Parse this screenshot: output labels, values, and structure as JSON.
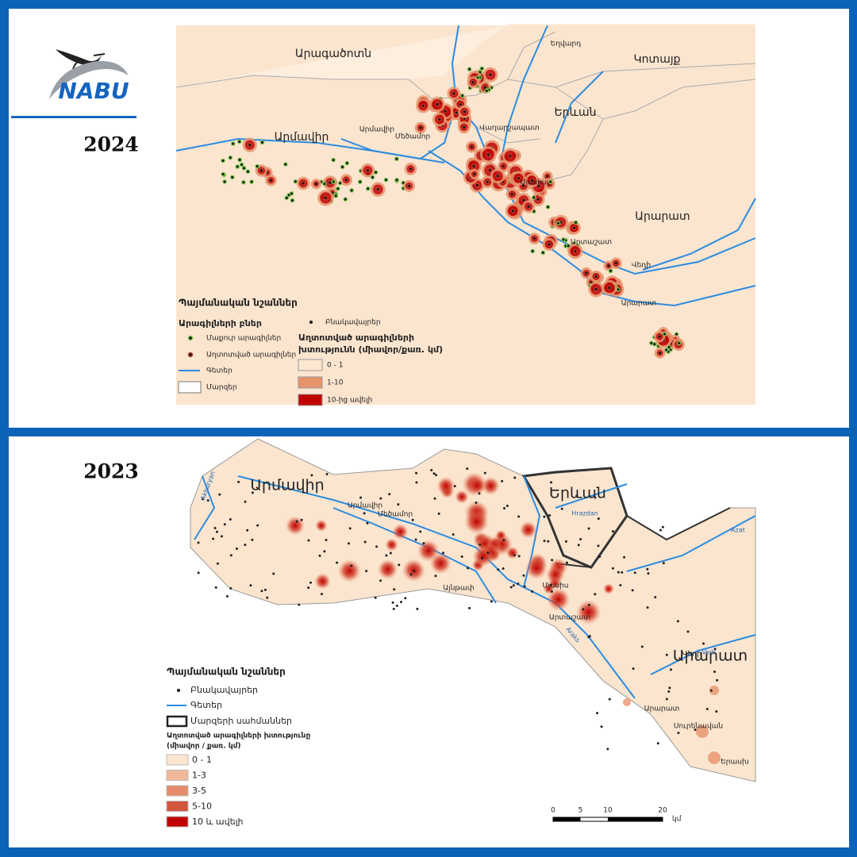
{
  "logo": {
    "text": "NABU"
  },
  "panels": [
    {
      "year": "2024",
      "regions": [
        "Արագածոտն",
        "Կոտայք",
        "Երևան",
        "Արմավիր",
        "Արարատ"
      ],
      "places": [
        "Եղվարդ",
        "Արմավիր",
        "Մեծամոր",
        "Վաղարշապատ",
        "Մասիս",
        "Արտաշատ",
        "Վեդի",
        "Արարատ"
      ],
      "legend": {
        "title": "Պայմանական նշաններ",
        "nests_title": "Արագիլների բներ",
        "clean": "Մաքուր արագիլներ",
        "polluted": "Աղտոտված արագիլներ",
        "rivers": "Գետեր",
        "regions": "Մարզեր",
        "settlements": "Բնակավայրեր",
        "density_title": [
          "Աղտոտված արագիլների",
          "խտությունն (միավոր/քառ. կմ)"
        ],
        "classes": [
          {
            "label": "0 - 1",
            "color": "#fde6cf"
          },
          {
            "label": "1-10",
            "color": "#e8936c"
          },
          {
            "label": "10-ից ավելի",
            "color": "#c00000"
          }
        ]
      }
    },
    {
      "year": "2023",
      "regions": [
        "Արմավիր",
        "Երևան",
        "Արարատ"
      ],
      "places": [
        "Արմավիր",
        "Մեծամոր",
        "Մասիս",
        "Արտաշատ",
        "Վեդի",
        "Արարատ",
        "Սուրենավան",
        "Երասխ",
        "Այնթափ"
      ],
      "rivers": [
        "Akhuryan",
        "Hrazdan",
        "Azat",
        "Vedi",
        "Araks"
      ],
      "legend": {
        "title": "Պայմանական նշաններ",
        "settlements": "Բնակավայրեր",
        "rivers": "Գետեր",
        "borders": "Մարզերի սահմաններ",
        "density_title": [
          "Աղտոտված արագիլների խտությունը",
          "(միավոր / քառ. կմ)"
        ],
        "classes": [
          {
            "label": "0 - 1",
            "color": "#fde6cf"
          },
          {
            "label": "1-3",
            "color": "#f3b79b"
          },
          {
            "label": "3-5",
            "color": "#e58c6a"
          },
          {
            "label": "5-10",
            "color": "#d2563d"
          },
          {
            "label": "10 և ավելի",
            "color": "#c00000"
          }
        ]
      },
      "scale": {
        "ticks": [
          0,
          5,
          10,
          20
        ],
        "unit": "կմ"
      }
    }
  ]
}
